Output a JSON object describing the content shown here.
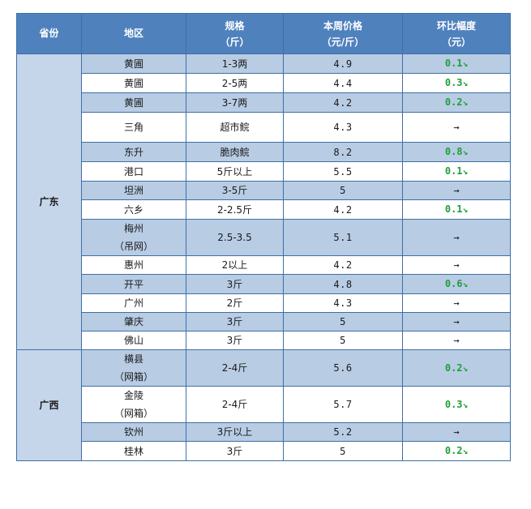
{
  "headers": {
    "province": "省份",
    "region": "地区",
    "spec": [
      "规格",
      "（斤）"
    ],
    "price": [
      "本周价格",
      "（元/斤）"
    ],
    "change": [
      "环比幅度",
      "（元）"
    ]
  },
  "provinces": [
    {
      "name": "广东",
      "rows": [
        {
          "region": [
            "黄圃"
          ],
          "spec": "1-3两",
          "price": "4.9",
          "change": "0.1",
          "dir": "down",
          "shade": true
        },
        {
          "region": [
            "黄圃"
          ],
          "spec": "2-5两",
          "price": "4.4",
          "change": "0.3",
          "dir": "down",
          "shade": false
        },
        {
          "region": [
            "黄圃"
          ],
          "spec": "3-7两",
          "price": "4.2",
          "change": "0.2",
          "dir": "down",
          "shade": true
        },
        {
          "region": [
            "三角"
          ],
          "spec": "超市鲩",
          "price": "4.3",
          "change": "",
          "dir": "flat",
          "shade": false,
          "tall": true
        },
        {
          "region": [
            "东升"
          ],
          "spec": "脆肉鲩",
          "price": "8.2",
          "change": "0.8",
          "dir": "down",
          "shade": true
        },
        {
          "region": [
            "港口"
          ],
          "spec": "5斤以上",
          "price": "5.5",
          "change": "0.1",
          "dir": "down",
          "shade": false
        },
        {
          "region": [
            "坦洲"
          ],
          "spec": "3-5斤",
          "price": "5",
          "change": "",
          "dir": "flat",
          "shade": true
        },
        {
          "region": [
            "六乡"
          ],
          "spec": "2-2.5斤",
          "price": "4.2",
          "change": "0.1",
          "dir": "down",
          "shade": false
        },
        {
          "region": [
            "梅州",
            "（吊网）"
          ],
          "spec": "2.5-3.5",
          "price": "5.1",
          "change": "",
          "dir": "flat",
          "shade": true
        },
        {
          "region": [
            "惠州"
          ],
          "spec": "2以上",
          "price": "4.2",
          "change": "",
          "dir": "flat",
          "shade": false
        },
        {
          "region": [
            "开平"
          ],
          "spec": "3斤",
          "price": "4.8",
          "change": "0.6",
          "dir": "down",
          "shade": true
        },
        {
          "region": [
            "广州"
          ],
          "spec": "2斤",
          "price": "4.3",
          "change": "",
          "dir": "flat",
          "shade": false
        },
        {
          "region": [
            "肇庆"
          ],
          "spec": "3斤",
          "price": "5",
          "change": "",
          "dir": "flat",
          "shade": true
        },
        {
          "region": [
            "佛山"
          ],
          "spec": "3斤",
          "price": "5",
          "change": "",
          "dir": "flat",
          "shade": false
        }
      ]
    },
    {
      "name": "广西",
      "rows": [
        {
          "region": [
            "横县",
            "（网箱）"
          ],
          "spec": "2-4斤",
          "price": "5.6",
          "change": "0.2",
          "dir": "down",
          "shade": true
        },
        {
          "region": [
            "金陵",
            "（网箱）"
          ],
          "spec": "2-4斤",
          "price": "5.7",
          "change": "0.3",
          "dir": "down",
          "shade": false
        },
        {
          "region": [
            "钦州"
          ],
          "spec": "3斤以上",
          "price": "5.2",
          "change": "",
          "dir": "flat",
          "shade": true
        },
        {
          "region": [
            "桂林"
          ],
          "spec": "3斤",
          "price": "5",
          "change": "0.2",
          "dir": "down",
          "shade": false
        }
      ]
    }
  ],
  "arrows": {
    "down": "↘",
    "flat": "→"
  }
}
